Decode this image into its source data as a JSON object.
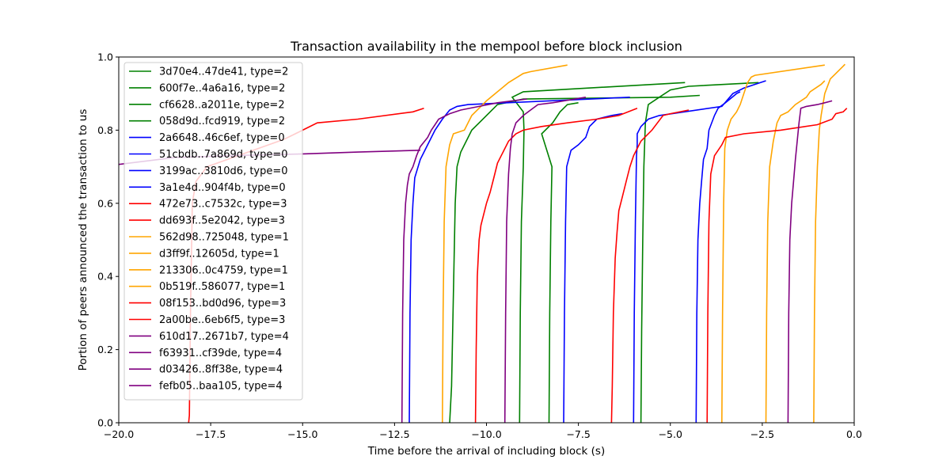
{
  "chart_data": {
    "type": "line",
    "title": "Transaction availability in the mempool before block inclusion",
    "xlabel": "Time before the arrival of including block (s)",
    "ylabel": "Portion of peers announced the transaction to us",
    "xlim": [
      -20,
      0
    ],
    "ylim": [
      0,
      1
    ],
    "xticks": [
      -20,
      -17.5,
      -15,
      -12.5,
      -10,
      -7.5,
      -5,
      -2.5,
      0
    ],
    "xtick_labels": [
      "−20.0",
      "−17.5",
      "−15.0",
      "−12.5",
      "−10.0",
      "−7.5",
      "−5.0",
      "−2.5",
      "0.0"
    ],
    "yticks": [
      0,
      0.2,
      0.4,
      0.6,
      0.8,
      1.0
    ],
    "ytick_labels": [
      "0.0",
      "0.2",
      "0.4",
      "0.6",
      "0.8",
      "1.0"
    ],
    "grid": false,
    "legend_position": "upper-left",
    "series": [
      {
        "name": "3d70e4..47de41, type=2",
        "color": "#008000",
        "points": [
          [
            -11.0,
            0
          ],
          [
            -10.95,
            0.1
          ],
          [
            -10.9,
            0.35
          ],
          [
            -10.85,
            0.6
          ],
          [
            -10.8,
            0.7
          ],
          [
            -10.7,
            0.74
          ],
          [
            -10.4,
            0.8
          ],
          [
            -10.2,
            0.82
          ],
          [
            -10.0,
            0.84
          ],
          [
            -9.7,
            0.87
          ],
          [
            -9.0,
            0.885
          ],
          [
            -5.0,
            0.89
          ],
          [
            -4.2,
            0.895
          ]
        ]
      },
      {
        "name": "600f7e..4a6a16, type=2",
        "color": "#008000",
        "points": [
          [
            -9.1,
            0
          ],
          [
            -9.08,
            0.3
          ],
          [
            -9.05,
            0.55
          ],
          [
            -9.0,
            0.7
          ],
          [
            -8.98,
            0.8
          ],
          [
            -9.0,
            0.85
          ],
          [
            -9.3,
            0.89
          ],
          [
            -9.0,
            0.905
          ],
          [
            -4.6,
            0.93
          ]
        ]
      },
      {
        "name": "cf6628..a2011e, type=2",
        "color": "#008000",
        "points": [
          [
            -5.8,
            0
          ],
          [
            -5.78,
            0.25
          ],
          [
            -5.75,
            0.5
          ],
          [
            -5.72,
            0.7
          ],
          [
            -5.68,
            0.82
          ],
          [
            -5.6,
            0.87
          ],
          [
            -5.3,
            0.89
          ],
          [
            -5.0,
            0.91
          ],
          [
            -4.5,
            0.92
          ],
          [
            -2.6,
            0.93
          ]
        ]
      },
      {
        "name": "058d9d..fcd919, type=2",
        "color": "#008000",
        "points": [
          [
            -8.3,
            0
          ],
          [
            -8.28,
            0.3
          ],
          [
            -8.25,
            0.55
          ],
          [
            -8.22,
            0.7
          ],
          [
            -8.5,
            0.79
          ],
          [
            -8.2,
            0.82
          ],
          [
            -8.0,
            0.85
          ],
          [
            -7.8,
            0.87
          ],
          [
            -7.5,
            0.875
          ]
        ]
      },
      {
        "name": "2a6648..46c6ef, type=0",
        "color": "#0000ff",
        "points": [
          [
            -12.1,
            0
          ],
          [
            -12.08,
            0.3
          ],
          [
            -12.05,
            0.5
          ],
          [
            -12.0,
            0.6
          ],
          [
            -11.95,
            0.67
          ],
          [
            -11.8,
            0.72
          ],
          [
            -11.6,
            0.76
          ],
          [
            -11.4,
            0.8
          ],
          [
            -11.2,
            0.83
          ],
          [
            -11.0,
            0.855
          ],
          [
            -10.8,
            0.865
          ],
          [
            -10.5,
            0.87
          ],
          [
            -6.1,
            0.89
          ]
        ]
      },
      {
        "name": "51cbdb..7a869d, type=0",
        "color": "#0000ff",
        "points": [
          [
            -7.9,
            0
          ],
          [
            -7.88,
            0.3
          ],
          [
            -7.85,
            0.55
          ],
          [
            -7.82,
            0.7
          ],
          [
            -7.7,
            0.745
          ],
          [
            -7.5,
            0.76
          ],
          [
            -7.3,
            0.78
          ],
          [
            -7.2,
            0.81
          ],
          [
            -7.0,
            0.83
          ],
          [
            -6.6,
            0.84
          ],
          [
            -6.3,
            0.845
          ]
        ]
      },
      {
        "name": "3199ac..3810d6, type=0",
        "color": "#0000ff",
        "points": [
          [
            -6.0,
            0
          ],
          [
            -5.98,
            0.3
          ],
          [
            -5.95,
            0.55
          ],
          [
            -5.92,
            0.73
          ],
          [
            -5.9,
            0.76
          ],
          [
            -5.9,
            0.79
          ],
          [
            -5.8,
            0.81
          ],
          [
            -5.6,
            0.83
          ],
          [
            -5.3,
            0.84
          ],
          [
            -3.6,
            0.865
          ],
          [
            -3.3,
            0.9
          ],
          [
            -3.0,
            0.915
          ],
          [
            -2.4,
            0.935
          ]
        ]
      },
      {
        "name": "3a1e4d..904f4b, type=0",
        "color": "#0000ff",
        "points": [
          [
            -4.3,
            0
          ],
          [
            -4.28,
            0.3
          ],
          [
            -4.25,
            0.5
          ],
          [
            -4.2,
            0.6
          ],
          [
            -4.15,
            0.66
          ],
          [
            -4.1,
            0.72
          ],
          [
            -4.0,
            0.75
          ],
          [
            -3.95,
            0.8
          ],
          [
            -3.8,
            0.84
          ],
          [
            -3.7,
            0.86
          ],
          [
            -3.5,
            0.875
          ],
          [
            -3.2,
            0.9
          ],
          [
            -3.1,
            0.905
          ]
        ]
      },
      {
        "name": "472e73..c7532c, type=3",
        "color": "#ff0000",
        "points": [
          [
            -18.1,
            0
          ],
          [
            -18.08,
            0.02
          ],
          [
            -18.05,
            0.3
          ],
          [
            -18.0,
            0.6
          ],
          [
            -17.9,
            0.66
          ],
          [
            -17.6,
            0.7
          ],
          [
            -15.5,
            0.775
          ],
          [
            -15.0,
            0.8
          ],
          [
            -14.6,
            0.82
          ],
          [
            -13.5,
            0.83
          ],
          [
            -12.0,
            0.85
          ],
          [
            -11.7,
            0.86
          ]
        ]
      },
      {
        "name": "dd693f..5e2042, type=3",
        "color": "#ff0000",
        "points": [
          [
            -6.6,
            0
          ],
          [
            -6.58,
            0.1
          ],
          [
            -6.55,
            0.3
          ],
          [
            -6.5,
            0.45
          ],
          [
            -6.45,
            0.52
          ],
          [
            -6.4,
            0.58
          ],
          [
            -6.3,
            0.62
          ],
          [
            -6.2,
            0.66
          ],
          [
            -6.1,
            0.7
          ],
          [
            -6.0,
            0.73
          ],
          [
            -5.8,
            0.77
          ],
          [
            -5.5,
            0.8
          ],
          [
            -5.2,
            0.84
          ],
          [
            -5.0,
            0.845
          ],
          [
            -4.5,
            0.855
          ]
        ]
      },
      {
        "name": "562d98..725048, type=1",
        "color": "#ffa500",
        "points": [
          [
            -11.2,
            0
          ],
          [
            -11.18,
            0.3
          ],
          [
            -11.15,
            0.55
          ],
          [
            -11.1,
            0.7
          ],
          [
            -11.0,
            0.76
          ],
          [
            -10.9,
            0.79
          ],
          [
            -10.6,
            0.8
          ],
          [
            -10.4,
            0.84
          ],
          [
            -10.2,
            0.86
          ],
          [
            -10.0,
            0.88
          ],
          [
            -9.7,
            0.905
          ],
          [
            -9.4,
            0.93
          ],
          [
            -9.0,
            0.955
          ],
          [
            -8.8,
            0.96
          ],
          [
            -7.8,
            0.978
          ]
        ]
      },
      {
        "name": "d3ff9f..12605d, type=1",
        "color": "#ffa500",
        "points": [
          [
            -3.6,
            0
          ],
          [
            -3.58,
            0.3
          ],
          [
            -3.55,
            0.6
          ],
          [
            -3.52,
            0.75
          ],
          [
            -3.45,
            0.8
          ],
          [
            -3.35,
            0.83
          ],
          [
            -3.2,
            0.85
          ],
          [
            -3.1,
            0.87
          ],
          [
            -3.0,
            0.9
          ],
          [
            -2.9,
            0.93
          ],
          [
            -2.8,
            0.945
          ],
          [
            -2.7,
            0.95
          ],
          [
            -0.8,
            0.978
          ]
        ]
      },
      {
        "name": "213306..0c4759, type=1",
        "color": "#ffa500",
        "points": [
          [
            -2.4,
            0
          ],
          [
            -2.38,
            0.3
          ],
          [
            -2.35,
            0.55
          ],
          [
            -2.3,
            0.7
          ],
          [
            -2.2,
            0.77
          ],
          [
            -2.1,
            0.82
          ],
          [
            -2.0,
            0.84
          ],
          [
            -1.8,
            0.85
          ],
          [
            -1.6,
            0.87
          ],
          [
            -1.3,
            0.89
          ],
          [
            -1.2,
            0.905
          ],
          [
            -0.9,
            0.925
          ],
          [
            -0.8,
            0.935
          ]
        ]
      },
      {
        "name": "0b519f..586077, type=1",
        "color": "#ffa500",
        "points": [
          [
            -1.1,
            0
          ],
          [
            -1.08,
            0.3
          ],
          [
            -1.05,
            0.55
          ],
          [
            -1.0,
            0.7
          ],
          [
            -0.95,
            0.8
          ],
          [
            -0.9,
            0.84
          ],
          [
            -0.8,
            0.9
          ],
          [
            -0.65,
            0.94
          ],
          [
            -0.5,
            0.955
          ],
          [
            -0.3,
            0.975
          ],
          [
            -0.25,
            0.98
          ]
        ]
      },
      {
        "name": "08f153..bd0d96, type=3",
        "color": "#ff0000",
        "points": [
          [
            -10.3,
            0
          ],
          [
            -10.28,
            0.2
          ],
          [
            -10.25,
            0.4
          ],
          [
            -10.2,
            0.5
          ],
          [
            -10.15,
            0.54
          ],
          [
            -10.0,
            0.6
          ],
          [
            -9.9,
            0.63
          ],
          [
            -9.8,
            0.67
          ],
          [
            -9.7,
            0.71
          ],
          [
            -9.6,
            0.73
          ],
          [
            -9.4,
            0.77
          ],
          [
            -9.2,
            0.79
          ],
          [
            -9.0,
            0.8
          ],
          [
            -8.5,
            0.81
          ],
          [
            -7.8,
            0.82
          ],
          [
            -7.0,
            0.83
          ],
          [
            -6.4,
            0.84
          ],
          [
            -5.9,
            0.86
          ]
        ]
      },
      {
        "name": "2a00be..6eb6f5, type=3",
        "color": "#ff0000",
        "points": [
          [
            -4.0,
            0
          ],
          [
            -3.98,
            0.3
          ],
          [
            -3.95,
            0.55
          ],
          [
            -3.9,
            0.68
          ],
          [
            -3.8,
            0.73
          ],
          [
            -3.6,
            0.76
          ],
          [
            -3.5,
            0.78
          ],
          [
            -3.0,
            0.79
          ],
          [
            -2.0,
            0.8
          ],
          [
            -1.0,
            0.815
          ],
          [
            -0.6,
            0.83
          ],
          [
            -0.5,
            0.845
          ],
          [
            -0.3,
            0.85
          ],
          [
            -0.2,
            0.86
          ]
        ]
      },
      {
        "name": "610d17..2671b7, type=4",
        "color": "#800080",
        "points": [
          [
            -12.3,
            0
          ],
          [
            -12.28,
            0.3
          ],
          [
            -12.25,
            0.5
          ],
          [
            -12.2,
            0.6
          ],
          [
            -12.15,
            0.65
          ],
          [
            -12.1,
            0.68
          ],
          [
            -12.0,
            0.7
          ],
          [
            -11.9,
            0.73
          ],
          [
            -11.8,
            0.755
          ],
          [
            -11.6,
            0.78
          ],
          [
            -11.5,
            0.8
          ],
          [
            -11.4,
            0.815
          ],
          [
            -11.3,
            0.83
          ],
          [
            -11.0,
            0.845
          ],
          [
            -10.7,
            0.855
          ],
          [
            -10.2,
            0.865
          ],
          [
            -9.7,
            0.875
          ],
          [
            -8.9,
            0.885
          ]
        ]
      },
      {
        "name": "f63931..cf39de, type=4",
        "color": "#800080",
        "points": [
          [
            -9.5,
            0
          ],
          [
            -9.48,
            0.3
          ],
          [
            -9.45,
            0.55
          ],
          [
            -9.4,
            0.68
          ],
          [
            -9.35,
            0.75
          ],
          [
            -9.3,
            0.79
          ],
          [
            -9.2,
            0.82
          ],
          [
            -9.0,
            0.84
          ],
          [
            -8.8,
            0.855
          ],
          [
            -8.6,
            0.87
          ],
          [
            -8.2,
            0.875
          ],
          [
            -7.6,
            0.885
          ],
          [
            -7.3,
            0.89
          ]
        ]
      },
      {
        "name": "d03426..8ff38e, type=4",
        "color": "#800080",
        "points": [
          [
            -1.8,
            0
          ],
          [
            -1.78,
            0.3
          ],
          [
            -1.75,
            0.5
          ],
          [
            -1.7,
            0.6
          ],
          [
            -1.65,
            0.66
          ],
          [
            -1.6,
            0.72
          ],
          [
            -1.55,
            0.77
          ],
          [
            -1.5,
            0.82
          ],
          [
            -1.45,
            0.86
          ],
          [
            -1.3,
            0.865
          ],
          [
            -1.0,
            0.87
          ],
          [
            -0.8,
            0.875
          ],
          [
            -0.6,
            0.88
          ]
        ]
      },
      {
        "name": "fefb05..baa105, type=4",
        "color": "#800080",
        "points": [
          [
            -20.5,
            0.7
          ],
          [
            -18.5,
            0.725
          ],
          [
            -17.0,
            0.73
          ],
          [
            -15.0,
            0.735
          ],
          [
            -13.5,
            0.74
          ],
          [
            -11.8,
            0.745
          ]
        ]
      }
    ]
  }
}
